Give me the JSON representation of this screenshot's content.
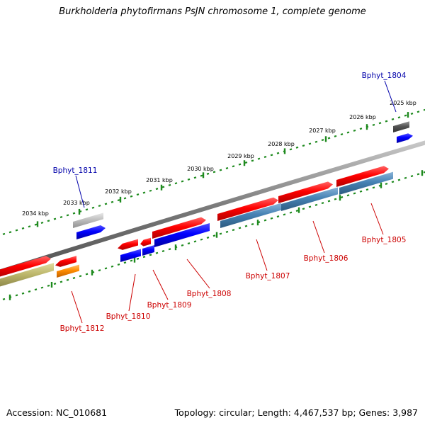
{
  "title": "Burkholderia phytofirmans PsJN chromosome 1, complete genome",
  "footer": {
    "accession": "Accession: NC_010681",
    "summary": "Topology: circular; Length: 4,467,537 bp; Genes: 3,987"
  },
  "colors": {
    "upper_scale": "#1e8a1e",
    "lower_scale": "#1e8a1e",
    "backbone": "#7a7a7a",
    "label_red": "#cc0000",
    "label_blue": "#0000aa",
    "gene_red": "#ff0000",
    "gene_blue": "#0000ff",
    "gene_steelblue": "#4682b4",
    "gene_gray": "#555555",
    "gene_lightgray": "#c0c0c0",
    "gene_olive": "#bdb76b",
    "gene_orange": "#ff8c00"
  },
  "scale": {
    "labels": [
      "2034 kbp",
      "2033 kbp",
      "2032 kbp",
      "2031 kbp",
      "2030 kbp",
      "2029 kbp",
      "2028 kbp",
      "2027 kbp",
      "2026 kbp",
      "2025 kbp"
    ]
  },
  "gene_labels": [
    {
      "id": "Bphyt_1804",
      "text": "Bphyt_1804",
      "color": "blue"
    },
    {
      "id": "Bphyt_1805",
      "text": "Bphyt_1805",
      "color": "red"
    },
    {
      "id": "Bphyt_1806",
      "text": "Bphyt_1806",
      "color": "red"
    },
    {
      "id": "Bphyt_1807",
      "text": "Bphyt_1807",
      "color": "red"
    },
    {
      "id": "Bphyt_1808",
      "text": "Bphyt_1808",
      "color": "red"
    },
    {
      "id": "Bphyt_1809",
      "text": "Bphyt_1809",
      "color": "red"
    },
    {
      "id": "Bphyt_1810",
      "text": "Bphyt_1810",
      "color": "red"
    },
    {
      "id": "Bphyt_1811",
      "text": "Bphyt_1811",
      "color": "blue"
    },
    {
      "id": "Bphyt_1812",
      "text": "Bphyt_1812",
      "color": "red"
    }
  ]
}
